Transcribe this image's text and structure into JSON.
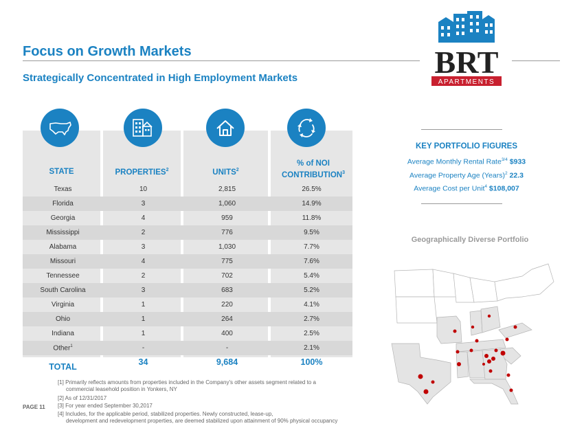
{
  "title": "Focus on Growth Markets",
  "subtitle": "Strategically Concentrated in High Employment Markets",
  "logo": {
    "main": "BRT",
    "sub": "APARTMENTS",
    "brand_blue": "#1b82c2",
    "brand_red": "#c8202f"
  },
  "table": {
    "icons": [
      "us-map-icon",
      "buildings-icon",
      "house-icon",
      "cycle-arrows-icon"
    ],
    "headers": {
      "state": "STATE",
      "properties": "PROPERTIES",
      "properties_note": "2",
      "units": "UNITS",
      "units_note": "2",
      "noi_line1": "% of NOI",
      "noi_line2": "CONTRIBUTION",
      "noi_note": "3"
    },
    "rows": [
      {
        "state": "Texas",
        "properties": "10",
        "units": "2,815",
        "noi": "26.5%"
      },
      {
        "state": "Florida",
        "properties": "3",
        "units": "1,060",
        "noi": "14.9%"
      },
      {
        "state": "Georgia",
        "properties": "4",
        "units": "959",
        "noi": "11.8%"
      },
      {
        "state": "Mississippi",
        "properties": "2",
        "units": "776",
        "noi": "9.5%"
      },
      {
        "state": "Alabama",
        "properties": "3",
        "units": "1,030",
        "noi": "7.7%"
      },
      {
        "state": "Missouri",
        "properties": "4",
        "units": "775",
        "noi": "7.6%"
      },
      {
        "state": "Tennessee",
        "properties": "2",
        "units": "702",
        "noi": "5.4%"
      },
      {
        "state": "South Carolina",
        "properties": "3",
        "units": "683",
        "noi": "5.2%"
      },
      {
        "state": "Virginia",
        "properties": "1",
        "units": "220",
        "noi": "4.1%"
      },
      {
        "state": "Ohio",
        "properties": "1",
        "units": "264",
        "noi": "2.7%"
      },
      {
        "state": "Indiana",
        "properties": "1",
        "units": "400",
        "noi": "2.5%"
      },
      {
        "state": "Other",
        "state_note": "1",
        "properties": "-",
        "units": "-",
        "noi": "2.1%"
      }
    ],
    "total": {
      "label": "TOTAL",
      "properties": "34",
      "units": "9,684",
      "noi": "100%"
    }
  },
  "footnotes": [
    "[1] Primarily reflects amounts from properties included in the Company's other assets segment related to a",
    "commercial leasehold position in Yonkers, NY",
    "[2] As of 12/31/2017",
    "[3] For year ended September 30,2017",
    "[4] Includes, for the applicable period, stabilized properties. Newly constructed, lease-up,",
    "development and redevelopment properties, are deemed stabilized upon attainment of 90% physical occupancy"
  ],
  "page_label": "PAGE 11",
  "key_figures": {
    "title": "KEY PORTFOLIO FIGURES",
    "rental_label": "Average Monthly Rental Rate",
    "rental_note": "3/4",
    "rental_value": "$933",
    "age_label": "Average Property Age (Years)",
    "age_note": "2",
    "age_value": "22.3",
    "cost_label": "Average Cost per Unit",
    "cost_note": "4",
    "cost_value": "$108,007"
  },
  "map_title": "Geographically Diverse Portfolio",
  "colors": {
    "accent": "#1b82c2",
    "map_dot": "#c00000",
    "row_shade": "#d8d8d8"
  }
}
